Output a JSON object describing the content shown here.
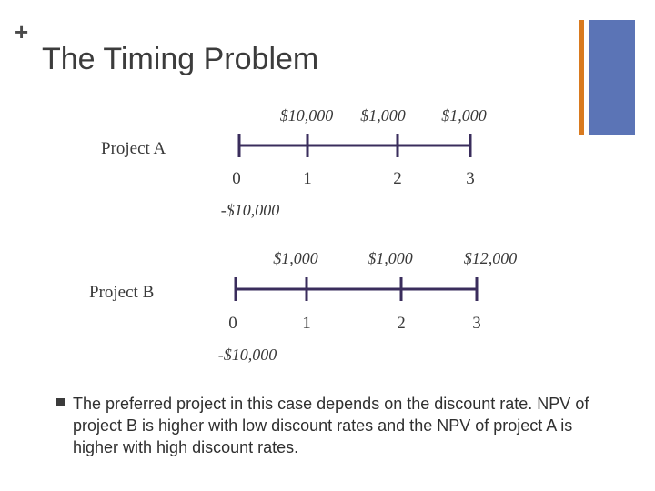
{
  "slide": {
    "plus_mark": "+",
    "title": "The Timing Problem",
    "bullet": "The preferred project in this case depends on the discount rate. NPV of project B is higher with low discount rates and the NPV of project A is higher with high discount rates."
  },
  "colors": {
    "accent_orange": "#d97a1f",
    "accent_blue": "#5b74b6",
    "timeline_line": "#3a2d5c",
    "text": "#2f2f2f"
  },
  "projects": [
    {
      "label": "Project A",
      "periods": [
        "0",
        "1",
        "2",
        "3"
      ],
      "inflows": [
        "$10,000",
        "$1,000",
        "$1,000"
      ],
      "outflow": "-$10,000"
    },
    {
      "label": "Project B",
      "periods": [
        "0",
        "1",
        "2",
        "3"
      ],
      "inflows": [
        "$1,000",
        "$1,000",
        "$12,000"
      ],
      "outflow": "-$10,000"
    }
  ]
}
